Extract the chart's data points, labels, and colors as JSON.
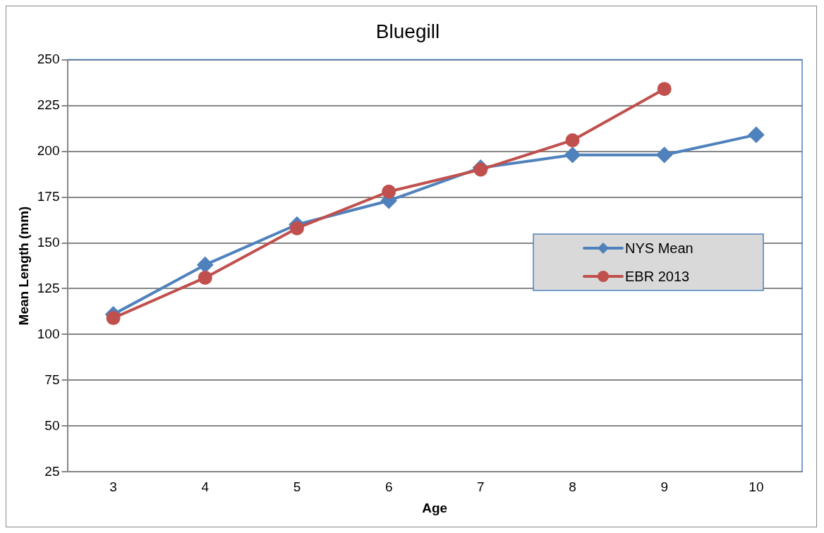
{
  "chart_data": {
    "type": "line",
    "title": "Bluegill",
    "xlabel": "Age",
    "ylabel": "Mean Length (mm)",
    "categories": [
      "3",
      "4",
      "5",
      "6",
      "7",
      "8",
      "9",
      "10"
    ],
    "series": [
      {
        "name": "NYS Mean",
        "color": "#4f81bd",
        "marker": "diamond",
        "values": [
          111,
          138,
          160,
          173,
          191,
          198,
          198,
          209
        ]
      },
      {
        "name": "EBR 2013",
        "color": "#c0504d",
        "marker": "circle",
        "values": [
          109,
          131,
          158,
          178,
          190,
          206,
          234,
          null
        ]
      }
    ],
    "ylim": [
      25,
      250
    ],
    "yticks": [
      25,
      50,
      75,
      100,
      125,
      150,
      175,
      200,
      225,
      250
    ],
    "grid": "y",
    "legend": "right"
  }
}
